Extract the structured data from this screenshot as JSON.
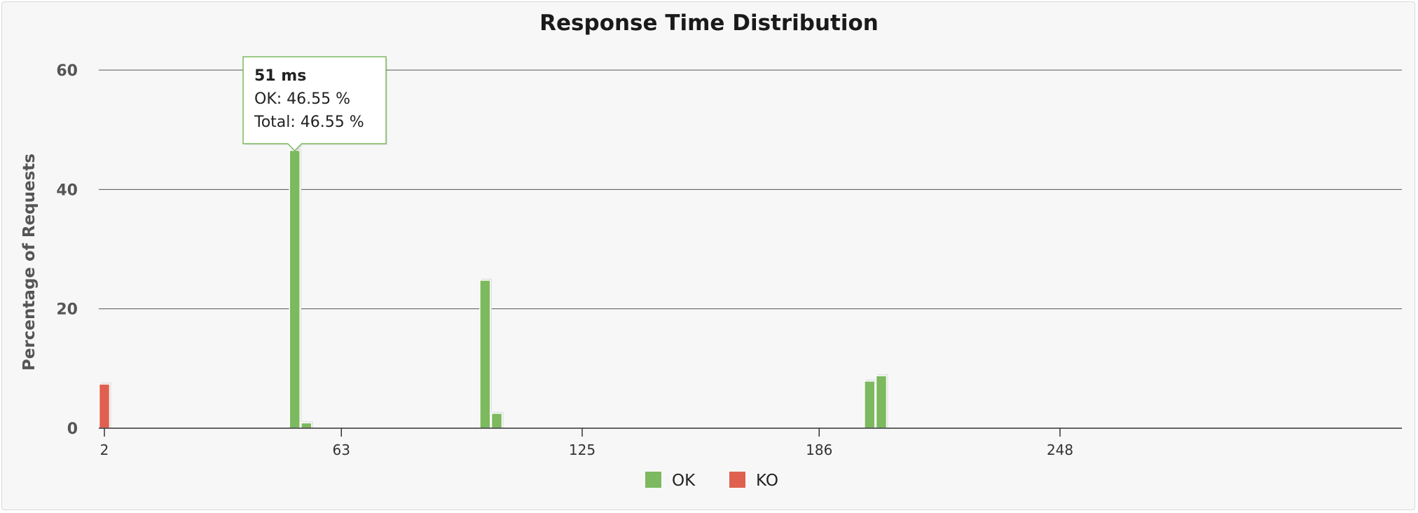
{
  "chart_data": {
    "type": "bar",
    "title": "Response Time Distribution",
    "ylabel": "Percentage of Requests",
    "xlabel": "",
    "xlim": [
      2,
      336
    ],
    "ylim": [
      0,
      60
    ],
    "y_ticks": [
      0,
      20,
      40,
      60
    ],
    "x_ticks": [
      2,
      63,
      125,
      186,
      248
    ],
    "grid": true,
    "legend_position": "bottom-center",
    "series": [
      {
        "name": "OK",
        "color": "#7cb95f",
        "points": [
          {
            "x": 51,
            "y": 46.55
          },
          {
            "x": 54,
            "y": 0.9
          },
          {
            "x": 100,
            "y": 24.8
          },
          {
            "x": 103,
            "y": 2.5
          },
          {
            "x": 199,
            "y": 7.9
          },
          {
            "x": 202,
            "y": 8.8
          }
        ]
      },
      {
        "name": "KO",
        "color": "#e0604f",
        "points": [
          {
            "x": 2,
            "y": 7.4
          }
        ]
      }
    ],
    "tooltip": {
      "x": 51,
      "title": "51 ms",
      "line1": "OK: 46.55 %",
      "line2": "Total: 46.55 %"
    }
  }
}
